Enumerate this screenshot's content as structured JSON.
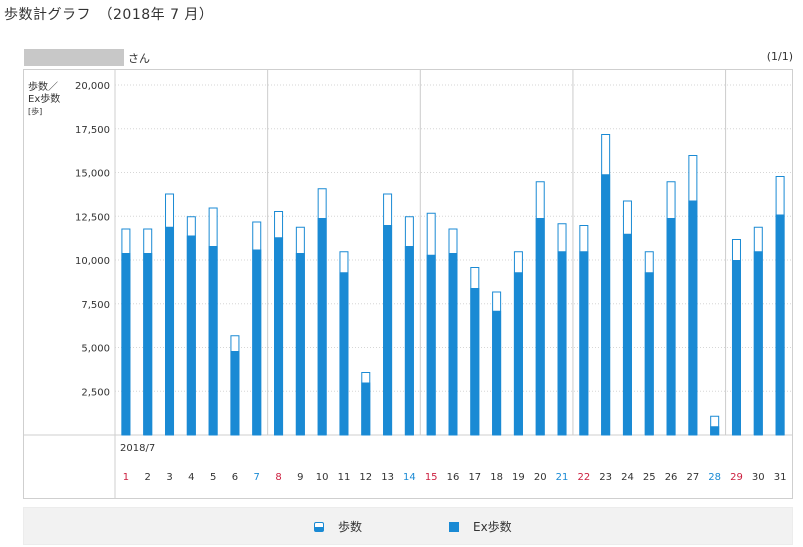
{
  "page": {
    "title": "歩数計グラフ　（2018年 7 月）",
    "user_suffix": "さん",
    "pager": "(1/1)"
  },
  "chart_data": {
    "type": "bar",
    "yaxis_label": [
      "歩数／",
      "Ex歩数",
      "[歩]"
    ],
    "ylim": [
      0,
      20000
    ],
    "yticks": [
      2500,
      5000,
      7500,
      10000,
      12500,
      15000,
      17500,
      20000
    ],
    "ytick_labels": [
      "2,500",
      "5,000",
      "7,500",
      "10,000",
      "12,500",
      "15,000",
      "17,500",
      "20,000"
    ],
    "month_label": "2018/7",
    "categories": [
      "1",
      "2",
      "3",
      "4",
      "5",
      "6",
      "7",
      "8",
      "9",
      "10",
      "11",
      "12",
      "13",
      "14",
      "15",
      "16",
      "17",
      "18",
      "19",
      "20",
      "21",
      "22",
      "23",
      "24",
      "25",
      "26",
      "27",
      "28",
      "29",
      "30",
      "31"
    ],
    "day_colors": {
      "sunday": [
        "1",
        "8",
        "15",
        "22",
        "29"
      ],
      "saturday": [
        "7",
        "14",
        "21",
        "28"
      ]
    },
    "week_separators_after": [
      "7",
      "14",
      "21",
      "28"
    ],
    "series": [
      {
        "name": "歩数",
        "values": [
          11800,
          11800,
          13800,
          12500,
          13000,
          5700,
          12200,
          12800,
          11900,
          14100,
          10500,
          3600,
          13800,
          12500,
          12700,
          11800,
          9600,
          8200,
          10500,
          14500,
          12100,
          12000,
          17200,
          13400,
          10500,
          14500,
          16000,
          1100,
          11200,
          11900,
          14800
        ]
      },
      {
        "name": "Ex歩数",
        "values": [
          10400,
          10400,
          11900,
          11400,
          10800,
          4800,
          10600,
          11300,
          10400,
          12400,
          9300,
          3000,
          12000,
          10800,
          10300,
          10400,
          8400,
          7100,
          9300,
          12400,
          10500,
          10500,
          14900,
          11500,
          9300,
          12400,
          13400,
          500,
          10000,
          10500,
          12600
        ]
      }
    ],
    "grid": true,
    "legend_position": "bottom-center",
    "colors": {
      "bar": "#1a8ad4",
      "sunday": "#cc1f3f",
      "saturday": "#1a8ad4",
      "grid": "#d6d6d6"
    }
  },
  "legend": [
    {
      "label": "歩数",
      "icon": "outlined-bar-icon"
    },
    {
      "label": "Ex歩数",
      "icon": "filled-square-icon"
    }
  ]
}
